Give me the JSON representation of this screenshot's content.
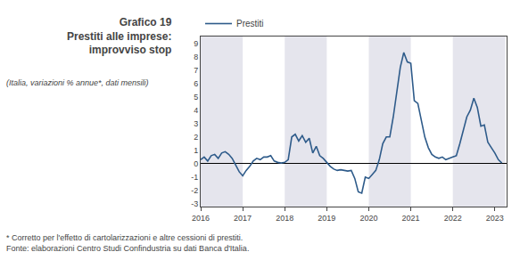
{
  "chart_data": {
    "type": "line",
    "title": "Grafico 19\nPrestiti alle imprese:\nimprovviso stop",
    "subtitle": "(Italia, variazioni % annue*, dati mensili)",
    "annotations": [
      "* Corretto per l'effetto di cartolarizzazioni e altre cessioni di prestiti.",
      "Fonte: elaborazioni Centro Studi Confindustria su dati Banca d'Italia."
    ],
    "x": [
      2016.0,
      2016.083,
      2016.167,
      2016.25,
      2016.333,
      2016.417,
      2016.5,
      2016.583,
      2016.667,
      2016.75,
      2016.833,
      2016.917,
      2017.0,
      2017.083,
      2017.167,
      2017.25,
      2017.333,
      2017.417,
      2017.5,
      2017.583,
      2017.667,
      2017.75,
      2017.833,
      2017.917,
      2018.0,
      2018.083,
      2018.167,
      2018.25,
      2018.333,
      2018.417,
      2018.5,
      2018.583,
      2018.667,
      2018.75,
      2018.833,
      2018.917,
      2019.0,
      2019.083,
      2019.167,
      2019.25,
      2019.333,
      2019.417,
      2019.5,
      2019.583,
      2019.667,
      2019.75,
      2019.833,
      2019.917,
      2020.0,
      2020.083,
      2020.167,
      2020.25,
      2020.333,
      2020.417,
      2020.5,
      2020.583,
      2020.667,
      2020.75,
      2020.833,
      2020.917,
      2021.0,
      2021.083,
      2021.167,
      2021.25,
      2021.333,
      2021.417,
      2021.5,
      2021.583,
      2021.667,
      2021.75,
      2021.833,
      2021.917,
      2022.0,
      2022.083,
      2022.167,
      2022.25,
      2022.333,
      2022.417,
      2022.5,
      2022.583,
      2022.667,
      2022.75,
      2022.833,
      2022.917,
      2023.0,
      2023.083,
      2023.167
    ],
    "series": [
      {
        "name": "Prestiti",
        "color": "#2E5B8A",
        "values": [
          0.3,
          0.5,
          0.2,
          0.6,
          0.7,
          0.4,
          0.8,
          0.9,
          0.7,
          0.4,
          -0.1,
          -0.6,
          -0.9,
          -0.5,
          -0.2,
          0.2,
          0.4,
          0.3,
          0.5,
          0.5,
          0.6,
          0.2,
          0.1,
          0.05,
          0.1,
          0.3,
          2.0,
          2.2,
          1.7,
          2.1,
          1.6,
          1.9,
          0.8,
          1.3,
          0.6,
          0.4,
          0.1,
          -0.2,
          -0.4,
          -0.5,
          -0.45,
          -0.5,
          -0.55,
          -0.5,
          -1.1,
          -2.1,
          -2.2,
          -1.0,
          -1.1,
          -0.8,
          -0.5,
          0.3,
          1.5,
          2.0,
          2.0,
          3.5,
          5.5,
          7.2,
          8.3,
          7.6,
          7.5,
          4.7,
          4.5,
          3.2,
          2.0,
          1.2,
          0.7,
          0.5,
          0.4,
          0.5,
          0.3,
          0.4,
          0.5,
          0.6,
          1.5,
          2.5,
          3.5,
          4.0,
          4.9,
          4.2,
          2.8,
          2.9,
          1.6,
          1.2,
          0.8,
          0.3,
          0.05
        ]
      }
    ],
    "shaded_bands": {
      "ranges": [
        [
          2016.0,
          2017.0
        ],
        [
          2018.0,
          2019.0
        ],
        [
          2020.0,
          2021.0
        ],
        [
          2022.0,
          2023.25
        ]
      ],
      "color": "#E5E5ED"
    },
    "xlim": [
      2016.0,
      2023.28
    ],
    "xticks": [
      2016,
      2017,
      2018,
      2019,
      2020,
      2021,
      2022,
      2023
    ],
    "ylim": [
      -3.2,
      9.5
    ],
    "yticks": [
      -3,
      -2,
      -1,
      0,
      1,
      2,
      3,
      4,
      5,
      6,
      7,
      8,
      9
    ],
    "grid": false,
    "legend": "top left"
  }
}
